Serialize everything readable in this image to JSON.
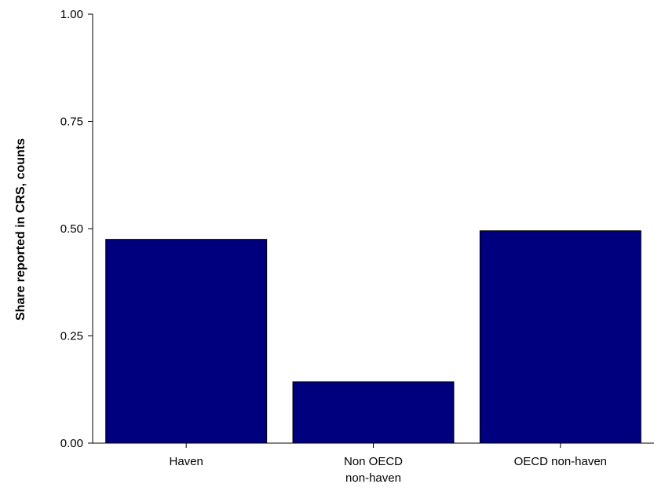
{
  "chart_data": {
    "type": "bar",
    "categories": [
      [
        "Haven"
      ],
      [
        "Non OECD",
        "non-haven"
      ],
      [
        "OECD non-haven"
      ]
    ],
    "values": [
      0.475,
      0.143,
      0.495
    ],
    "title": "",
    "xlabel": "",
    "ylabel": "Share reported in CRS, counts",
    "ylim": [
      0,
      1
    ],
    "yticks": [
      "0.00",
      "0.25",
      "0.50",
      "0.75",
      "1.00"
    ],
    "bar_color": "#00007f",
    "grid": false
  }
}
